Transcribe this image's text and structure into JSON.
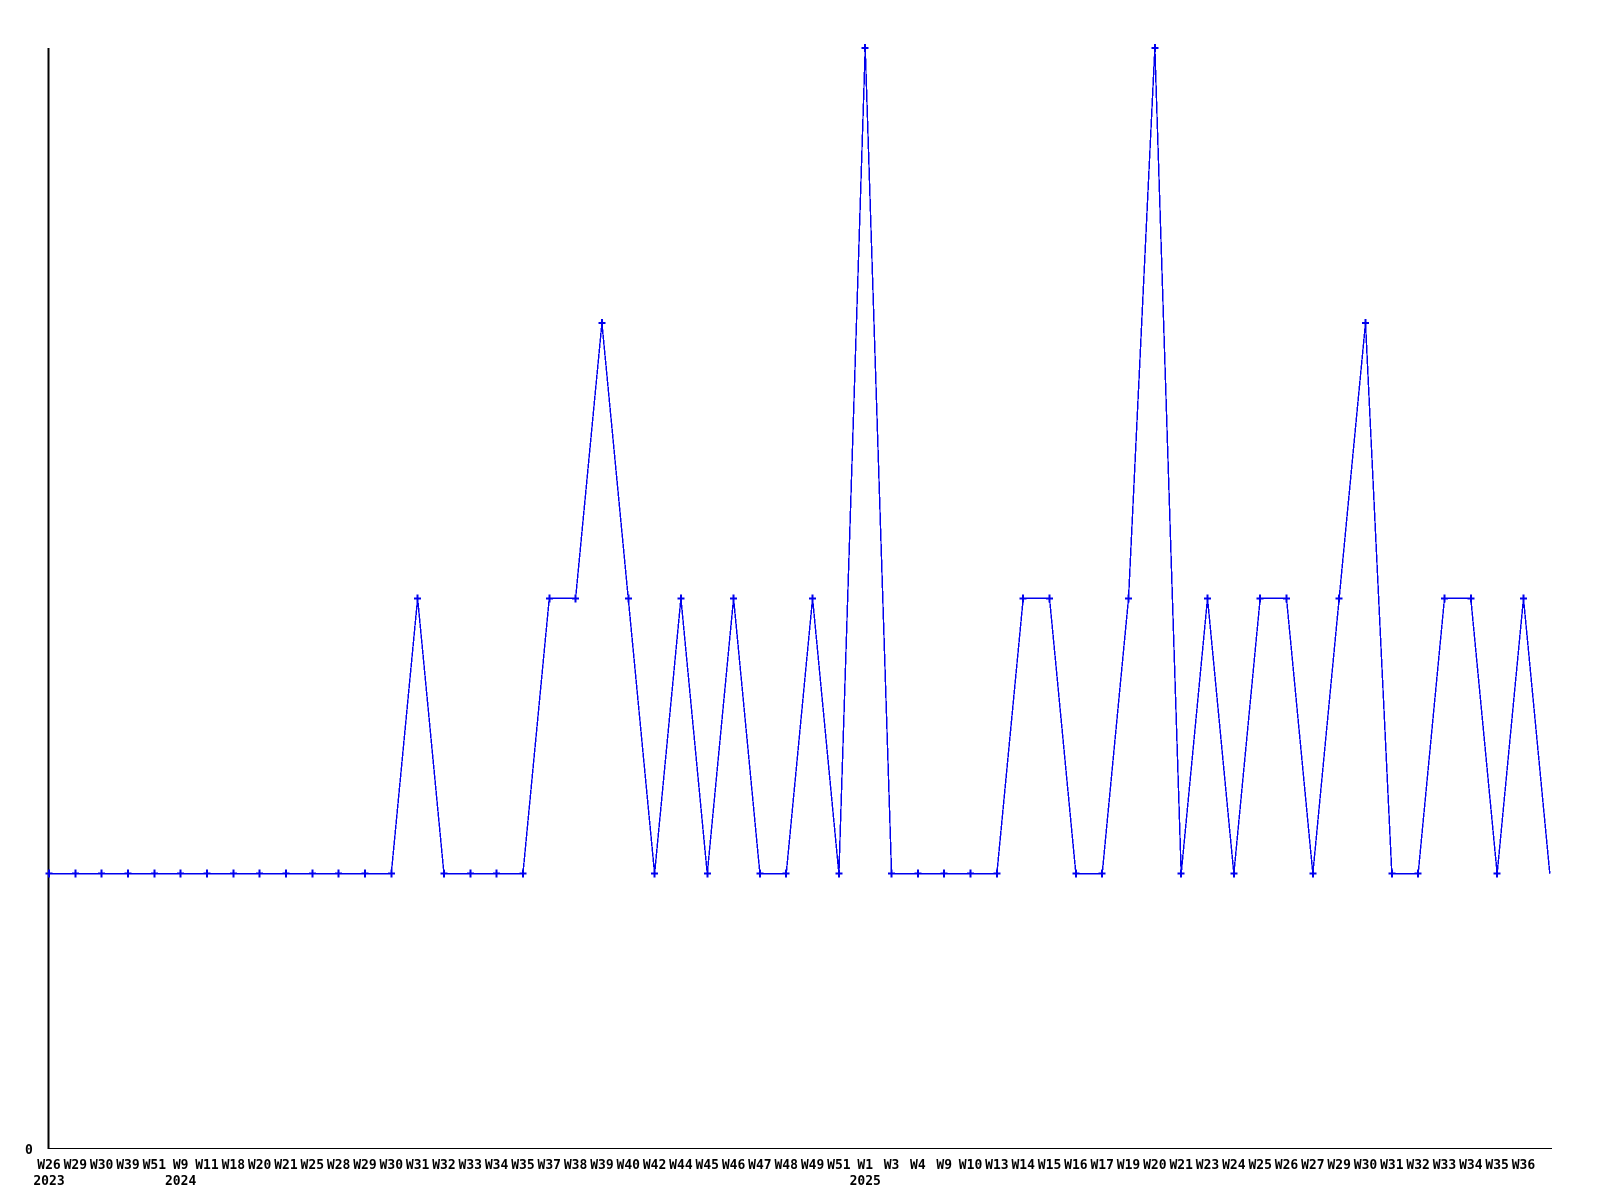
{
  "chart_data": {
    "type": "line",
    "title": "",
    "xlabel": "",
    "ylabel": "",
    "legend": "none",
    "grid": false,
    "background_color": "#FFFFFF",
    "axis_color": "#000000",
    "text_color": "#000000",
    "line_color": "#0000EE",
    "marker": "plus",
    "y_axis": {
      "origin_label": "0",
      "ylim": [
        0,
        4.0
      ],
      "ticks_shown": [
        "0"
      ]
    },
    "x_tick_labels": [
      "W26",
      "W29",
      "W30",
      "W39",
      "W51",
      "W9",
      "W11",
      "W18",
      "W20",
      "W21",
      "W25",
      "W28",
      "W29",
      "W30",
      "W31",
      "W32",
      "W33",
      "W34",
      "W35",
      "W37",
      "W38",
      "W39",
      "W40",
      "W42",
      "W44",
      "W45",
      "W46",
      "W47",
      "W48",
      "W49",
      "W51",
      "W1",
      "W3",
      "W4",
      "W9",
      "W10",
      "W13",
      "W14",
      "W15",
      "W16",
      "W17",
      "W19",
      "W20",
      "W21",
      "W23",
      "W24",
      "W25",
      "W26",
      "W27",
      "W29",
      "W30",
      "W31",
      "W32",
      "W33",
      "W34",
      "W35",
      "W36"
    ],
    "year_labels": [
      {
        "text": "2023",
        "at_index": 0
      },
      {
        "text": "2024",
        "at_index": 5
      },
      {
        "text": "2025",
        "at_index": 31
      }
    ],
    "values": [
      1,
      1,
      1,
      1,
      1,
      1,
      1,
      1,
      1,
      1,
      1,
      1,
      1,
      1,
      2,
      1,
      1,
      1,
      1,
      2,
      2,
      3,
      2,
      1,
      2,
      1,
      2,
      1,
      1,
      2,
      1,
      4,
      1,
      1,
      1,
      1,
      1,
      2,
      2,
      1,
      1,
      2,
      4,
      1,
      2,
      1,
      2,
      2,
      1,
      2,
      3,
      1,
      1,
      2,
      2,
      1,
      2
    ],
    "trailing_point": {
      "value": 1,
      "has_marker": false,
      "has_label": false
    }
  }
}
